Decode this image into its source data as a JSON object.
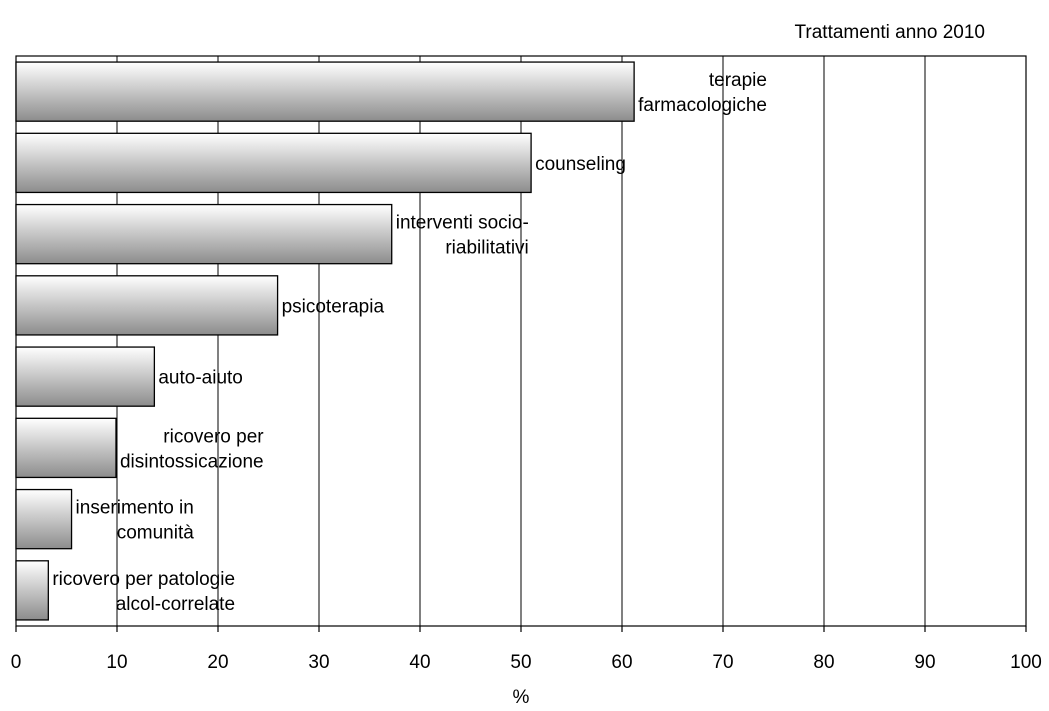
{
  "chart_data": {
    "type": "bar",
    "orientation": "horizontal",
    "title": "Trattamenti anno 2010",
    "xlabel": "%",
    "ylabel": "",
    "xlim": [
      0,
      100
    ],
    "ticks": [
      "0",
      "10",
      "20",
      "30",
      "40",
      "50",
      "60",
      "70",
      "80",
      "90",
      "100"
    ],
    "grid": "vertical",
    "legend": "none",
    "bar_fill": {
      "light": "#ffffff",
      "dark": "#8c8c8c"
    },
    "categories": [
      [
        "terapie",
        "farmacologiche"
      ],
      [
        "counseling"
      ],
      [
        "interventi socio-",
        "riabilitativi"
      ],
      [
        "psicoterapia"
      ],
      [
        "auto-aiuto"
      ],
      [
        "ricovero per",
        "disintossicazione"
      ],
      [
        "inserimento in",
        "comunità"
      ],
      [
        "ricovero per patologie",
        "alcol-correlate"
      ]
    ],
    "values": [
      61.2,
      51.0,
      37.2,
      25.9,
      13.7,
      9.9,
      5.5,
      3.2
    ]
  }
}
